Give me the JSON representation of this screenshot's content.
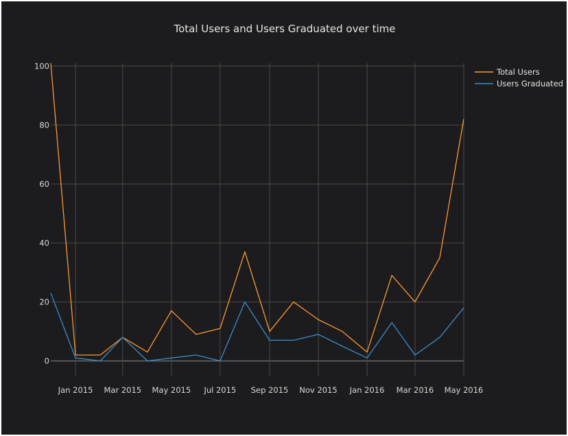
{
  "chart_data": {
    "type": "line",
    "title": "Total Users and Users Graduated over time",
    "x": [
      "2014-12-01",
      "2015-01-01",
      "2015-02-01",
      "2015-03-01",
      "2015-04-01",
      "2015-05-01",
      "2015-06-01",
      "2015-07-01",
      "2015-08-01",
      "2015-09-01",
      "2015-10-01",
      "2015-11-01",
      "2015-12-01",
      "2016-01-01",
      "2016-02-01",
      "2016-03-01",
      "2016-04-01",
      "2016-05-01"
    ],
    "x_tick_labels": [
      "Jan 2015",
      "Mar 2015",
      "May 2015",
      "Jul 2015",
      "Sep 2015",
      "Nov 2015",
      "Jan 2016",
      "Mar 2016",
      "May 2016"
    ],
    "x_tick_dates": [
      "2015-01-01",
      "2015-03-01",
      "2015-05-01",
      "2015-07-01",
      "2015-09-01",
      "2015-11-01",
      "2016-01-01",
      "2016-03-01",
      "2016-05-01"
    ],
    "xlim": [
      "2014-12-01",
      "2016-05-01"
    ],
    "y_tick_labels": [
      "0",
      "20",
      "40",
      "60",
      "80",
      "100"
    ],
    "y_tick_values": [
      0,
      20,
      40,
      60,
      80,
      100
    ],
    "ylim": [
      -5,
      101
    ],
    "grid": true,
    "legend_position": "top-right",
    "series": [
      {
        "name": "Total Users",
        "color": "#ff9833",
        "values": [
          101,
          2,
          2,
          8,
          3,
          17,
          9,
          11,
          37,
          10,
          20,
          14,
          10,
          3,
          29,
          20,
          35,
          82
        ]
      },
      {
        "name": "Users Graduated",
        "color": "#3c8dcc",
        "values": [
          23,
          1,
          0,
          8,
          0,
          1,
          2,
          0,
          20,
          7,
          7,
          9,
          5,
          1,
          13,
          2,
          8,
          18
        ]
      }
    ]
  }
}
